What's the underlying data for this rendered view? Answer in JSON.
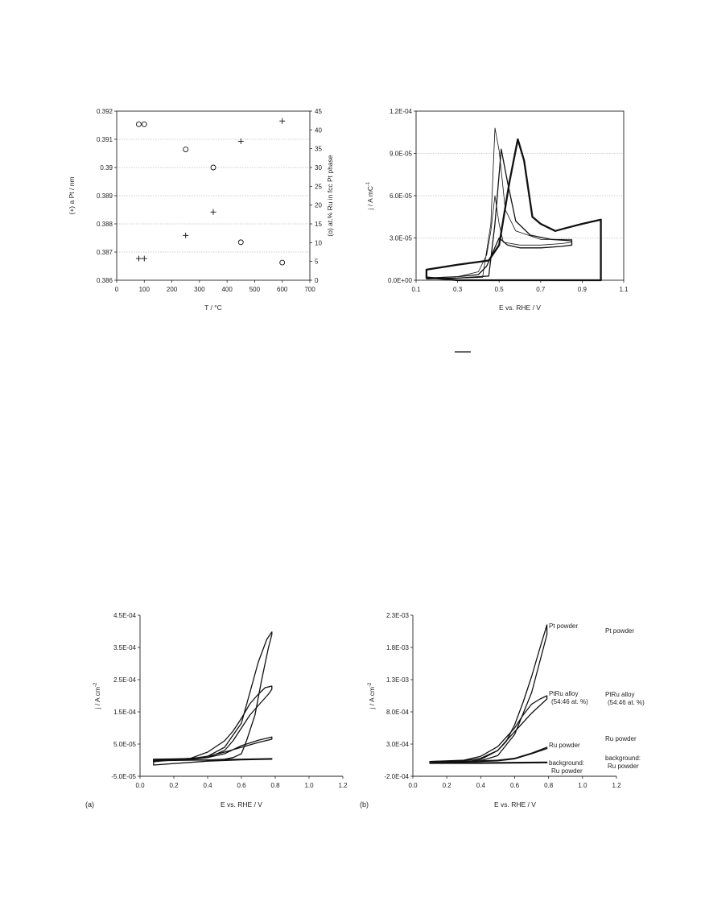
{
  "chart_data": [
    {
      "type": "scatter",
      "xlabel": "T / °C",
      "ylabel": "(+) a Pt / nm",
      "y2label": "(o) at.% Ru in fcc Pt phase",
      "xlim": [
        0,
        700
      ],
      "ylim": [
        0.386,
        0.392
      ],
      "y2lim": [
        0,
        45
      ],
      "xticks": [
        "0",
        "100",
        "200",
        "300",
        "400",
        "500",
        "600",
        "700"
      ],
      "yticks": [
        "0.386",
        "0.387",
        "0.388",
        "0.389",
        "0.39",
        "0.391",
        "0.392"
      ],
      "y2ticks": [
        "0",
        "5",
        "10",
        "15",
        "20",
        "25",
        "30",
        "35",
        "40",
        "45"
      ],
      "grid": true,
      "series": [
        {
          "marker": "plus",
          "axis": "left",
          "x": [
            80,
            100,
            250,
            350,
            450,
            600
          ],
          "y": [
            0.38677,
            0.38677,
            0.38759,
            0.38842,
            0.39093,
            0.39165
          ]
        },
        {
          "marker": "circle",
          "axis": "right",
          "x": [
            80,
            100,
            250,
            350,
            450,
            600
          ],
          "y": [
            41.5,
            41.5,
            34.8,
            30,
            10.1,
            4.7
          ]
        }
      ]
    },
    {
      "type": "line",
      "xlabel": "E vs. RHE / V",
      "ylabel": "j / A mC",
      "ylabel_sup": "-1",
      "xlim": [
        0.1,
        1.1
      ],
      "ylim": [
        0,
        0.00012
      ],
      "xticks": [
        "0.1",
        "0.3",
        "0.5",
        "0.7",
        "0.9",
        "1.1"
      ],
      "yticks": [
        "0.0E+00",
        "3.0E-05",
        "6.0E-05",
        "9.0E-05",
        "1.2E-04"
      ],
      "grid": true,
      "series": [
        {
          "weight": "thin",
          "x": [
            0.15,
            0.15,
            0.3,
            0.42,
            0.46,
            0.48,
            0.5,
            0.53,
            0.58,
            0.7,
            0.85,
            0.85,
            0.8,
            0.7,
            0.6,
            0.52,
            0.5,
            0.48,
            0.46,
            0.44,
            0.4,
            0.3,
            0.15
          ],
          "y": [
            1.5e-06,
            1e-06,
            1.5e-06,
            2e-06,
            4e-05,
            0.000108,
            9.2e-05,
            5e-05,
            3.5e-05,
            2.9e-05,
            2.9e-05,
            2.7e-05,
            2.6e-05,
            2.5e-05,
            2.5e-05,
            2.7e-05,
            4e-05,
            6e-05,
            3.5e-05,
            1.8e-05,
            6e-06,
            2.5e-06,
            1.5e-06
          ]
        },
        {
          "weight": "medium",
          "x": [
            0.15,
            0.15,
            0.3,
            0.45,
            0.48,
            0.51,
            0.54,
            0.58,
            0.65,
            0.75,
            0.85,
            0.85,
            0.8,
            0.7,
            0.6,
            0.54,
            0.5,
            0.47,
            0.44,
            0.4,
            0.3,
            0.15
          ],
          "y": [
            1.5e-06,
            1e-06,
            1.5e-06,
            3e-06,
            4e-05,
            9.3e-05,
            7e-05,
            4.2e-05,
            3.2e-05,
            2.9e-05,
            2.8e-05,
            2.5e-05,
            2.4e-05,
            2.3e-05,
            2.3e-05,
            2.5e-05,
            3e-05,
            2e-05,
            1e-05,
            4e-06,
            2.5e-06,
            1.5e-06
          ]
        },
        {
          "weight": "thick",
          "x": [
            0.15,
            0.15,
            0.3,
            0.45,
            0.5,
            0.55,
            0.59,
            0.62,
            0.66,
            0.7,
            0.77,
            0.82,
            0.9,
            0.99,
            0.99,
            0.97,
            0.9,
            0.8,
            0.7,
            0.6,
            0.5,
            0.4,
            0.3,
            0.15
          ],
          "y": [
            2e-06,
            7.5e-06,
            1.1e-05,
            1.4e-05,
            2.5e-05,
            7e-05,
            0.0001,
            8.5e-05,
            4.5e-05,
            4e-05,
            3.5e-05,
            3.7e-05,
            4e-05,
            4.3e-05,
            0,
            0,
            0,
            0,
            0,
            0,
            0,
            0,
            0,
            2e-06
          ]
        }
      ]
    },
    {
      "type": "line",
      "panel_label": "(a)",
      "xlabel": "E vs. RHE / V",
      "ylabel": "j / A cm",
      "ylabel_sup": "-2",
      "xlim": [
        0,
        1.2
      ],
      "ylim": [
        -5e-05,
        0.00045
      ],
      "xticks": [
        "0.0",
        "0.2",
        "0.4",
        "0.6",
        "0.8",
        "1.0",
        "1.2"
      ],
      "yticks": [
        "-5.0E-05",
        "5.0E-05",
        "1.5E-04",
        "2.5E-04",
        "3.5E-04",
        "4.5E-04"
      ],
      "series": [
        {
          "name": "Pt powder",
          "x": [
            0.08,
            0.08,
            0.2,
            0.3,
            0.4,
            0.5,
            0.6,
            0.65,
            0.7,
            0.75,
            0.78,
            0.78,
            0.76,
            0.72,
            0.68,
            0.63,
            0.6,
            0.55,
            0.5,
            0.4,
            0.3,
            0.2,
            0.08
          ],
          "y": [
            -2e-06,
            2e-06,
            3e-06,
            4e-06,
            1.2e-05,
            4e-05,
            0.000115,
            0.00021,
            0.000305,
            0.000375,
            0.000398,
            0.00039,
            0.00035,
            0.00025,
            0.00014,
            6e-05,
            2e-05,
            8e-06,
            3e-06,
            0,
            0,
            0,
            -2e-06
          ]
        },
        {
          "name": "PtRu alloy\n(54:46 at. %)",
          "x": [
            0.08,
            0.08,
            0.2,
            0.3,
            0.4,
            0.5,
            0.55,
            0.6,
            0.65,
            0.7,
            0.74,
            0.78,
            0.78,
            0.76,
            0.7,
            0.65,
            0.6,
            0.55,
            0.5,
            0.4,
            0.3,
            0.2,
            0.08
          ],
          "y": [
            -2e-06,
            2e-06,
            3e-06,
            6e-06,
            2.5e-05,
            6e-05,
            9e-05,
            0.00013,
            0.000175,
            0.000205,
            0.000225,
            0.00023,
            0.00022,
            0.000205,
            0.00017,
            0.00014,
            0.0001,
            6e-05,
            3e-05,
            8e-06,
            2e-06,
            0,
            -2e-06
          ]
        },
        {
          "name": "Ru powder",
          "x": [
            0.08,
            0.08,
            0.2,
            0.3,
            0.4,
            0.5,
            0.6,
            0.7,
            0.78,
            0.78,
            0.7,
            0.6,
            0.5,
            0.4,
            0.3,
            0.2,
            0.08
          ],
          "y": [
            -5e-06,
            3e-06,
            4e-06,
            5e-06,
            8e-06,
            2e-05,
            4.5e-05,
            6.2e-05,
            7.2e-05,
            6.5e-05,
            5.5e-05,
            4e-05,
            2.5e-05,
            1.2e-05,
            5e-06,
            1e-06,
            -5e-06
          ]
        },
        {
          "name": "background:\nRu powder",
          "x": [
            0.08,
            0.08,
            0.4,
            0.6,
            0.78,
            0.78,
            0.6,
            0.4,
            0.08
          ],
          "y": [
            -1.5e-05,
            -2e-06,
            1e-06,
            3e-06,
            5e-06,
            3e-06,
            1e-06,
            -3e-06,
            -1.5e-05
          ]
        }
      ]
    },
    {
      "type": "line",
      "panel_label": "(b)",
      "xlabel": "E vs. RHE / V",
      "ylabel": "j / A cm",
      "ylabel_sup": "-2",
      "xlim": [
        0,
        1.2
      ],
      "ylim": [
        -0.0002,
        0.0023
      ],
      "xticks": [
        "0.0",
        "0.2",
        "0.4",
        "0.6",
        "0.8",
        "1.0",
        "1.2"
      ],
      "yticks": [
        "-2.0E-04",
        "3.0E-04",
        "8.0E-04",
        "1.3E-03",
        "1.8E-03",
        "2.3E-03"
      ],
      "series": [
        {
          "name": "Pt powder",
          "x": [
            0.1,
            0.1,
            0.3,
            0.4,
            0.5,
            0.55,
            0.6,
            0.65,
            0.7,
            0.75,
            0.79,
            0.79,
            0.7,
            0.6,
            0.5,
            0.4,
            0.3,
            0.1
          ],
          "y": [
            1e-05,
            3e-05,
            4e-05,
            8e-05,
            0.0002,
            0.00034,
            0.0006,
            0.00095,
            0.00135,
            0.0018,
            0.00215,
            0.002,
            0.0011,
            0.00045,
            0.00012,
            4e-05,
            2e-05,
            1e-05
          ]
        },
        {
          "name": "PtRu alloy\n(54:46 at. %)",
          "x": [
            0.1,
            0.1,
            0.3,
            0.4,
            0.5,
            0.6,
            0.65,
            0.7,
            0.75,
            0.79,
            0.79,
            0.7,
            0.62,
            0.55,
            0.5,
            0.4,
            0.3,
            0.1
          ],
          "y": [
            1e-05,
            3e-05,
            5e-05,
            0.00011,
            0.00026,
            0.00055,
            0.00075,
            0.00092,
            0.001,
            0.00105,
            0.001,
            0.00078,
            0.00055,
            0.00035,
            0.0002,
            6e-05,
            2e-05,
            1e-05
          ]
        },
        {
          "name": "Ru powder",
          "x": [
            0.1,
            0.3,
            0.5,
            0.6,
            0.7,
            0.79,
            0.79,
            0.7,
            0.6,
            0.5,
            0.3,
            0.1
          ],
          "y": [
            2e-05,
            3e-05,
            5e-05,
            8e-05,
            0.00016,
            0.00025,
            0.00023,
            0.00015,
            7e-05,
            4e-05,
            2e-05,
            2e-05
          ]
        },
        {
          "name": "background:\nRu powder",
          "x": [
            0.1,
            0.4,
            0.79,
            0.79,
            0.4,
            0.1
          ],
          "y": [
            0,
            1e-05,
            2e-05,
            1e-05,
            0,
            0
          ]
        }
      ]
    }
  ]
}
